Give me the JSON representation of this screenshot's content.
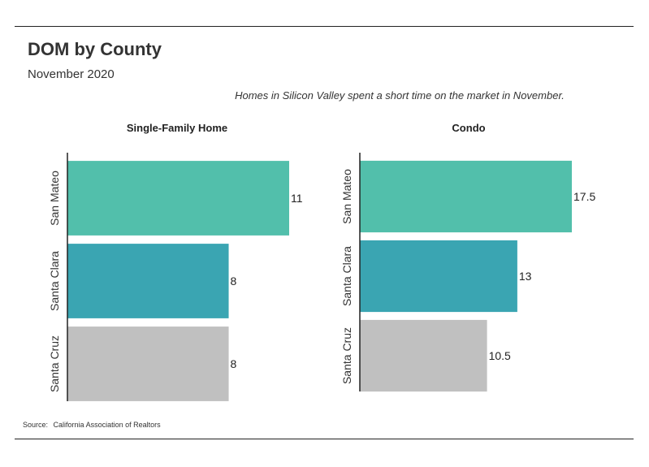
{
  "title": "DOM by County",
  "subtitle": "November 2020",
  "caption": "Homes in Silicon Valley spent a short time on the market in November.",
  "source_label": "Source:",
  "source_text": "California Association of Realtors",
  "chart_data": [
    {
      "type": "bar",
      "orientation": "horizontal",
      "title": "Single-Family Home",
      "categories": [
        "San Mateo",
        "Santa Clara",
        "Santa Cruz"
      ],
      "values": [
        11,
        8,
        8
      ],
      "value_labels": [
        "11",
        "8",
        "8"
      ],
      "colors": [
        "#52bfab",
        "#3aa5b2",
        "#c0c0c0"
      ],
      "xlim": [
        0,
        11
      ],
      "grid": false
    },
    {
      "type": "bar",
      "orientation": "horizontal",
      "title": "Condo",
      "categories": [
        "San Mateo",
        "Santa Clara",
        "Santa Cruz"
      ],
      "values": [
        17.5,
        13,
        10.5
      ],
      "value_labels": [
        "17.5",
        "13",
        "10.5"
      ],
      "colors": [
        "#52bfab",
        "#3aa5b2",
        "#c0c0c0"
      ],
      "xlim": [
        0,
        17.5
      ],
      "grid": false
    }
  ]
}
